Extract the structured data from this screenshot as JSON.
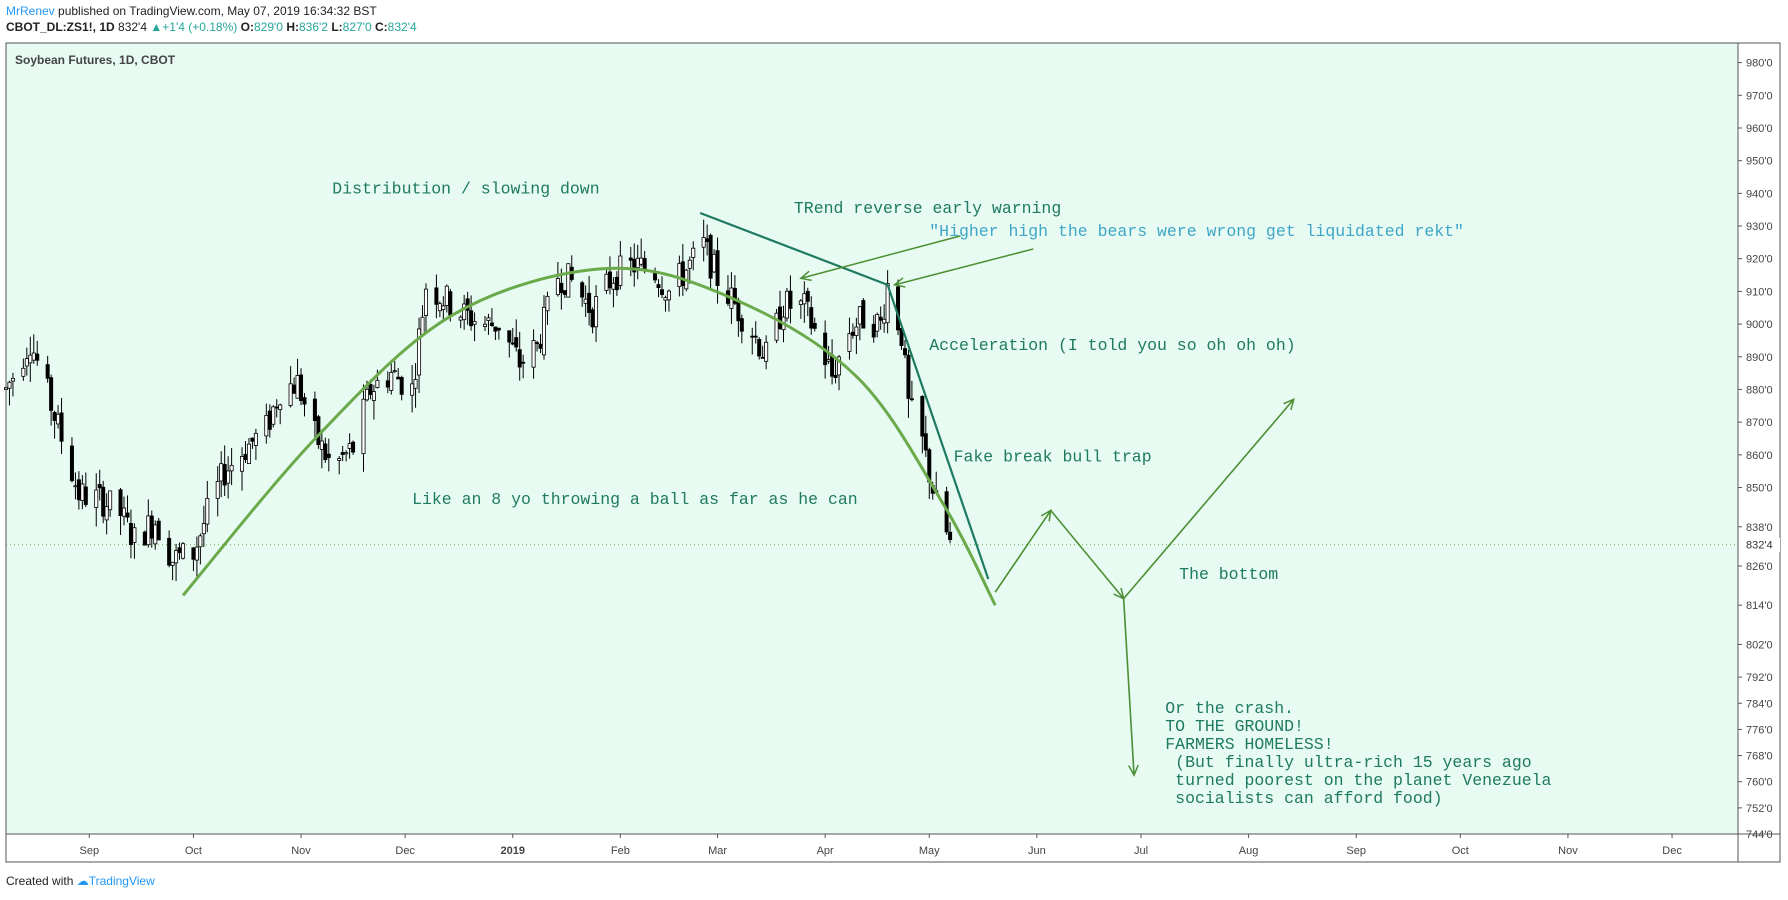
{
  "header": {
    "author": "MrRenev",
    "published_text": "published on TradingView.com, May 07, 2019 16:34:32 BST",
    "symbol": "CBOT_DL:ZS1!, 1D",
    "last": "832'4",
    "change": "+1'4 (+0.18%)",
    "ohlc": [
      {
        "k": "O:",
        "v": "829'0"
      },
      {
        "k": "H:",
        "v": "836'2"
      },
      {
        "k": "L:",
        "v": "827'0"
      },
      {
        "k": "C:",
        "v": "832'4"
      }
    ]
  },
  "footer": {
    "created_with": "Created with",
    "brand": "TradingView"
  },
  "chart_data": {
    "type": "candlestick",
    "title": "Soybean Futures, 1D, CBOT",
    "colors": {
      "background": "#e8fbf2",
      "candle": "#000000",
      "curve": "#6aaa4b",
      "trendline": "#1e7a62",
      "arrows": "#4c8f33",
      "annotation_text": "#1e7a62",
      "quote_text": "#3fa6c8",
      "price_label_bg": "#ffffff"
    },
    "y_range": [
      744,
      986
    ],
    "y_ticks": [
      "744'0",
      "752'0",
      "760'0",
      "768'0",
      "776'0",
      "784'0",
      "792'0",
      "802'0",
      "814'0",
      "826'0",
      "838'0",
      "850'0",
      "860'0",
      "870'0",
      "880'0",
      "890'0",
      "900'0",
      "910'0",
      "920'0",
      "930'0",
      "940'0",
      "950'0",
      "960'0",
      "970'0",
      "980'0"
    ],
    "last_price_label": "832'4",
    "x_ticks": [
      {
        "label": "Sep",
        "date": "2018-09-01"
      },
      {
        "label": "Oct",
        "date": "2018-10-01"
      },
      {
        "label": "Nov",
        "date": "2018-11-01"
      },
      {
        "label": "Dec",
        "date": "2018-12-01"
      },
      {
        "label": "2019",
        "date": "2019-01-01"
      },
      {
        "label": "Feb",
        "date": "2019-02-01"
      },
      {
        "label": "Mar",
        "date": "2019-03-01"
      },
      {
        "label": "Apr",
        "date": "2019-04-01"
      },
      {
        "label": "May",
        "date": "2019-05-01"
      },
      {
        "label": "Jun",
        "date": "2019-06-01"
      },
      {
        "label": "Jul",
        "date": "2019-07-01"
      },
      {
        "label": "Aug",
        "date": "2019-08-01"
      },
      {
        "label": "Sep",
        "date": "2019-09-01"
      },
      {
        "label": "Oct",
        "date": "2019-10-01"
      },
      {
        "label": "Nov",
        "date": "2019-11-01"
      },
      {
        "label": "Dec",
        "date": "2019-12-01"
      }
    ],
    "x_range": [
      "2018-08-08",
      "2019-12-20"
    ],
    "close_path": [
      {
        "date": "2018-08-08",
        "close": 880
      },
      {
        "date": "2018-08-15",
        "close": 895
      },
      {
        "date": "2018-08-22",
        "close": 872
      },
      {
        "date": "2018-08-29",
        "close": 848
      },
      {
        "date": "2018-09-05",
        "close": 846
      },
      {
        "date": "2018-09-10",
        "close": 842
      },
      {
        "date": "2018-09-14",
        "close": 834
      },
      {
        "date": "2018-09-20",
        "close": 840
      },
      {
        "date": "2018-09-25",
        "close": 828
      },
      {
        "date": "2018-10-01",
        "close": 830
      },
      {
        "date": "2018-10-05",
        "close": 842
      },
      {
        "date": "2018-10-10",
        "close": 855
      },
      {
        "date": "2018-10-16",
        "close": 862
      },
      {
        "date": "2018-10-22",
        "close": 868
      },
      {
        "date": "2018-10-26",
        "close": 880
      },
      {
        "date": "2018-10-31",
        "close": 882
      },
      {
        "date": "2018-11-05",
        "close": 866
      },
      {
        "date": "2018-11-10",
        "close": 856
      },
      {
        "date": "2018-11-16",
        "close": 862
      },
      {
        "date": "2018-11-21",
        "close": 880
      },
      {
        "date": "2018-11-27",
        "close": 885
      },
      {
        "date": "2018-12-03",
        "close": 880
      },
      {
        "date": "2018-12-07",
        "close": 912
      },
      {
        "date": "2018-12-12",
        "close": 908
      },
      {
        "date": "2018-12-18",
        "close": 903
      },
      {
        "date": "2018-12-24",
        "close": 900
      },
      {
        "date": "2018-12-28",
        "close": 900
      },
      {
        "date": "2019-01-03",
        "close": 888
      },
      {
        "date": "2019-01-08",
        "close": 893
      },
      {
        "date": "2019-01-14",
        "close": 915
      },
      {
        "date": "2019-01-18",
        "close": 913
      },
      {
        "date": "2019-01-24",
        "close": 904
      },
      {
        "date": "2019-01-30",
        "close": 915
      },
      {
        "date": "2019-02-05",
        "close": 918
      },
      {
        "date": "2019-02-11",
        "close": 916
      },
      {
        "date": "2019-02-15",
        "close": 910
      },
      {
        "date": "2019-02-21",
        "close": 918
      },
      {
        "date": "2019-02-25",
        "close": 924
      },
      {
        "date": "2019-03-01",
        "close": 914
      },
      {
        "date": "2019-03-06",
        "close": 906
      },
      {
        "date": "2019-03-11",
        "close": 898
      },
      {
        "date": "2019-03-15",
        "close": 890
      },
      {
        "date": "2019-03-20",
        "close": 906
      },
      {
        "date": "2019-03-26",
        "close": 905
      },
      {
        "date": "2019-03-29",
        "close": 898
      },
      {
        "date": "2019-04-03",
        "close": 884
      },
      {
        "date": "2019-04-08",
        "close": 898
      },
      {
        "date": "2019-04-12",
        "close": 902
      },
      {
        "date": "2019-04-17",
        "close": 900
      },
      {
        "date": "2019-04-19",
        "close": 912
      },
      {
        "date": "2019-04-23",
        "close": 897
      },
      {
        "date": "2019-04-25",
        "close": 875
      },
      {
        "date": "2019-04-29",
        "close": 864
      },
      {
        "date": "2019-05-03",
        "close": 845
      },
      {
        "date": "2019-05-06",
        "close": 836
      },
      {
        "date": "2019-05-07",
        "close": 832.5
      }
    ],
    "annotations": [
      {
        "text": "Distribution / slowing down",
        "date": "2018-11-10",
        "price": 940
      },
      {
        "text": "TRend reverse early warning",
        "date": "2019-03-23",
        "price": 934
      },
      {
        "text": "\"Higher high the bears were wrong get liquidated rekt\"",
        "date": "2019-05-01",
        "price": 927,
        "style": "quote"
      },
      {
        "text": "Acceleration (I told you so oh oh oh)",
        "date": "2019-05-01",
        "price": 892
      },
      {
        "text": "Like an 8 yo throwing a ball as far as he can",
        "date": "2018-12-03",
        "price": 845
      },
      {
        "text": "Fake break bull trap",
        "date": "2019-05-08",
        "price": 858
      },
      {
        "text": "The bottom",
        "date": "2019-07-12",
        "price": 822
      },
      {
        "lines": [
          "Or the crash.",
          "TO THE GROUND!",
          "FARMERS HOMELESS!",
          " (But finally ultra-rich 15 years ago",
          " turned poorest on the planet Venezuela",
          " socialists can afford food)"
        ],
        "date": "2019-07-08",
        "price": 781
      }
    ],
    "arc_curve": [
      {
        "date": "2018-09-28",
        "price": 817
      },
      {
        "date": "2018-11-06",
        "price": 866
      },
      {
        "date": "2018-12-15",
        "price": 903
      },
      {
        "date": "2019-01-28",
        "price": 917
      },
      {
        "date": "2019-03-05",
        "price": 908
      },
      {
        "date": "2019-04-10",
        "price": 884
      },
      {
        "date": "2019-05-05",
        "price": 845
      },
      {
        "date": "2019-05-20",
        "price": 814
      }
    ],
    "trendlines": [
      {
        "from": {
          "date": "2019-02-24",
          "price": 934
        },
        "to": {
          "date": "2019-04-19",
          "price": 912
        }
      },
      {
        "from": {
          "date": "2019-04-19",
          "price": 912
        },
        "to": {
          "date": "2019-05-18",
          "price": 822
        }
      }
    ],
    "arrows": [
      {
        "from": {
          "date": "2019-05-10",
          "price": 927
        },
        "to": {
          "date": "2019-03-25",
          "price": 914
        }
      },
      {
        "from": {
          "date": "2019-05-31",
          "price": 923
        },
        "to": {
          "date": "2019-04-21",
          "price": 912
        }
      }
    ],
    "projection_path": [
      {
        "date": "2019-05-20",
        "price": 818
      },
      {
        "date": "2019-06-05",
        "price": 843
      },
      {
        "date": "2019-06-26",
        "price": 816
      },
      {
        "date": "2019-08-14",
        "price": 877
      }
    ],
    "crash_path": [
      {
        "date": "2019-06-26",
        "price": 816
      },
      {
        "date": "2019-06-29",
        "price": 762
      }
    ]
  }
}
